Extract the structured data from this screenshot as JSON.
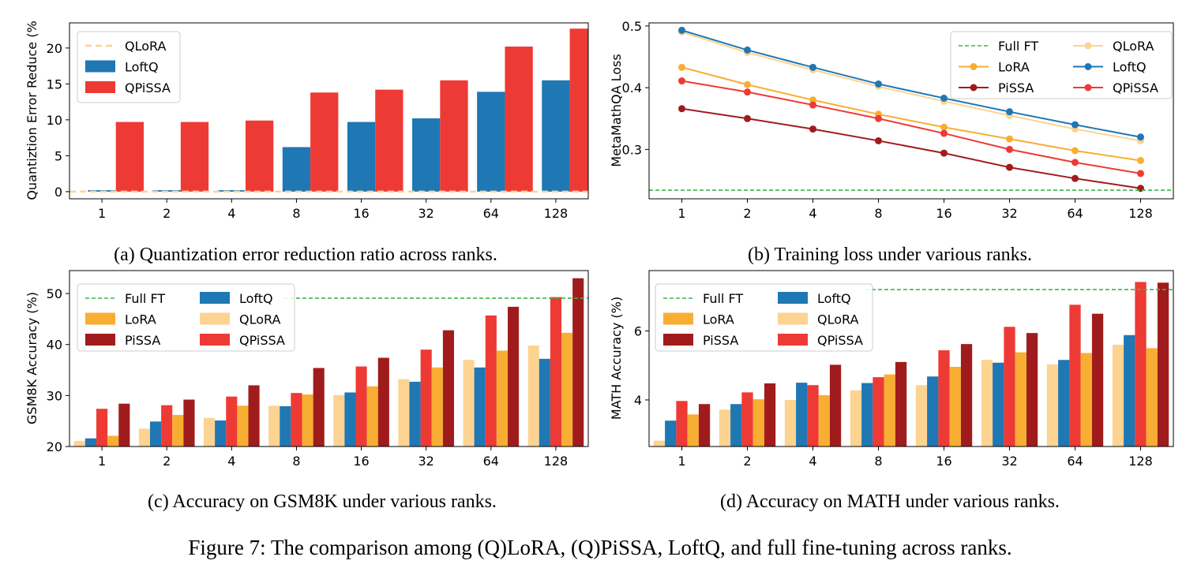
{
  "figure_caption": "Figure 7: The comparison among (Q)LoRA, (Q)PiSSA, LoftQ, and full fine-tuning across ranks.",
  "colors": {
    "Full FT": "#3cb44b",
    "LoRA": "#f8ae32",
    "PiSSA": "#a01c1c",
    "QLoRA": "#fdd391",
    "LoftQ": "#1f77b4",
    "QPiSSA": "#ee3a35"
  },
  "chart_data": [
    {
      "id": "a",
      "type": "bar",
      "caption": "(a) Quantization error reduction ratio across ranks.",
      "xlabel": "",
      "ylabel": "Quantiztion Error Reduce (%",
      "categories": [
        "1",
        "2",
        "4",
        "8",
        "16",
        "32",
        "64",
        "128"
      ],
      "ylim": [
        -1,
        23.5
      ],
      "yticks": [
        0,
        5,
        10,
        15,
        20
      ],
      "grid": false,
      "legend_position": "top-left",
      "legend": [
        "QLoRA",
        "LoftQ",
        "QPiSSA"
      ],
      "reference_lines": [
        {
          "name": "QLoRA",
          "value": 0
        }
      ],
      "series": [
        {
          "name": "LoftQ",
          "values": [
            0.2,
            0.2,
            0.2,
            6.2,
            9.7,
            10.2,
            13.9,
            15.5
          ]
        },
        {
          "name": "QPiSSA",
          "values": [
            9.7,
            9.7,
            9.9,
            13.8,
            14.2,
            15.5,
            20.2,
            22.7
          ]
        }
      ]
    },
    {
      "id": "b",
      "type": "line",
      "caption": "(b) Training loss under various ranks.",
      "xlabel": "",
      "ylabel": "MetaMathQA Loss",
      "categories": [
        "1",
        "2",
        "4",
        "8",
        "16",
        "32",
        "64",
        "128"
      ],
      "ylim": [
        0.22,
        0.505
      ],
      "yticks": [
        0.3,
        0.4,
        0.5
      ],
      "grid": false,
      "legend_position": "top-right",
      "legend": [
        "Full FT",
        "QLoRA",
        "LoRA",
        "LoftQ",
        "PiSSA",
        "QPiSSA"
      ],
      "reference_lines": [
        {
          "name": "Full FT",
          "value": 0.234
        }
      ],
      "series": [
        {
          "name": "QLoRA",
          "values": [
            0.49,
            0.457,
            0.429,
            0.402,
            0.378,
            0.355,
            0.333,
            0.314
          ]
        },
        {
          "name": "LoftQ",
          "values": [
            0.493,
            0.461,
            0.433,
            0.406,
            0.383,
            0.361,
            0.34,
            0.32
          ]
        },
        {
          "name": "LoRA",
          "values": [
            0.433,
            0.405,
            0.38,
            0.357,
            0.336,
            0.317,
            0.298,
            0.282
          ]
        },
        {
          "name": "QPiSSA",
          "values": [
            0.411,
            0.393,
            0.372,
            0.35,
            0.326,
            0.3,
            0.279,
            0.261
          ]
        },
        {
          "name": "PiSSA",
          "values": [
            0.366,
            0.35,
            0.333,
            0.314,
            0.294,
            0.271,
            0.253,
            0.237
          ]
        }
      ]
    },
    {
      "id": "c",
      "type": "bar",
      "caption": "(c) Accuracy on GSM8K under various ranks.",
      "xlabel": "",
      "ylabel": "GSM8K Accuracy (%)",
      "categories": [
        "1",
        "2",
        "4",
        "8",
        "16",
        "32",
        "64",
        "128"
      ],
      "ylim": [
        20,
        54.5
      ],
      "yticks": [
        20,
        30,
        40,
        50
      ],
      "grid": false,
      "legend_position": "top-left",
      "legend": [
        "Full FT",
        "LoftQ",
        "LoRA",
        "QLoRA",
        "PiSSA",
        "QPiSSA"
      ],
      "reference_lines": [
        {
          "name": "Full FT",
          "value": 49.1,
          "x_start_category": 3.3
        }
      ],
      "series": [
        {
          "name": "QLoRA",
          "values": [
            21.1,
            23.5,
            25.6,
            28.0,
            30.1,
            33.2,
            37.0,
            39.8
          ]
        },
        {
          "name": "LoftQ",
          "values": [
            21.6,
            24.9,
            25.1,
            27.9,
            30.6,
            32.7,
            35.5,
            37.2
          ]
        },
        {
          "name": "QPiSSA",
          "values": [
            27.4,
            28.1,
            29.8,
            30.5,
            35.7,
            39.0,
            45.7,
            49.3
          ]
        },
        {
          "name": "LoRA",
          "values": [
            22.1,
            26.2,
            28.0,
            30.2,
            31.8,
            35.5,
            38.8,
            42.3
          ]
        },
        {
          "name": "PiSSA",
          "values": [
            28.4,
            29.2,
            32.0,
            35.4,
            37.4,
            42.8,
            47.4,
            53.0
          ]
        }
      ]
    },
    {
      "id": "d",
      "type": "bar",
      "caption": "(d) Accuracy on MATH under various ranks.",
      "xlabel": "",
      "ylabel": "MATH Accuracy (%)",
      "categories": [
        "1",
        "2",
        "4",
        "8",
        "16",
        "32",
        "64",
        "128"
      ],
      "ylim": [
        2.65,
        7.75
      ],
      "yticks": [
        4,
        6
      ],
      "grid": false,
      "legend_position": "top-left",
      "legend": [
        "Full FT",
        "LoftQ",
        "LoRA",
        "QLoRA",
        "PiSSA",
        "QPiSSA"
      ],
      "reference_lines": [
        {
          "name": "Full FT",
          "value": 7.2,
          "x_start_category": 3.3
        }
      ],
      "series": [
        {
          "name": "QLoRA",
          "values": [
            2.82,
            3.72,
            4.0,
            4.28,
            4.43,
            5.16,
            5.03,
            5.6
          ]
        },
        {
          "name": "LoftQ",
          "values": [
            3.4,
            3.88,
            4.5,
            4.49,
            4.68,
            5.08,
            5.16,
            5.88
          ]
        },
        {
          "name": "QPiSSA",
          "values": [
            3.97,
            4.22,
            4.43,
            4.66,
            5.44,
            6.12,
            6.76,
            7.42
          ]
        },
        {
          "name": "LoRA",
          "values": [
            3.58,
            4.02,
            4.14,
            4.74,
            4.96,
            5.38,
            5.36,
            5.5
          ]
        },
        {
          "name": "PiSSA",
          "values": [
            3.88,
            4.48,
            5.02,
            5.1,
            5.62,
            5.94,
            6.5,
            7.4
          ]
        }
      ]
    }
  ]
}
